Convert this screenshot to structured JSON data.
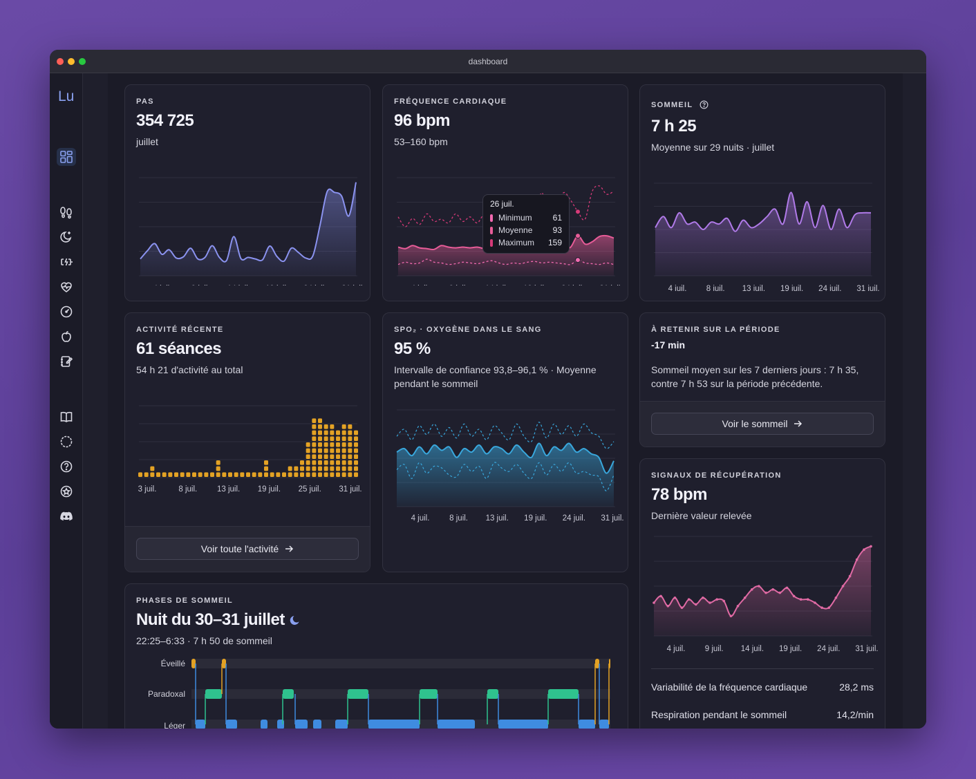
{
  "window": {
    "title": "dashboard"
  },
  "sidebar": {
    "logo": "Lu",
    "icons": [
      "dashboard-icon",
      "footprints-icon",
      "sleep-moon-icon",
      "battery-charging-icon",
      "heart-pulse-icon",
      "gauge-icon",
      "apple-icon",
      "journal-icon",
      "book-icon",
      "upload-icon",
      "help-icon",
      "badge-star-icon",
      "discord-icon"
    ]
  },
  "steps": {
    "label": "PAS",
    "value": "354 725",
    "subtitle": "juillet",
    "ticks": [
      "4 juil.",
      "9 juil.",
      "14 juil.",
      "19 juil.",
      "24 juil.",
      "31 juil."
    ]
  },
  "heart": {
    "label": "FRÉQUENCE CARDIAQUE",
    "value": "96 bpm",
    "subtitle": "53–160 bpm",
    "ticks": [
      "4 juil.",
      "9 juil.",
      "14 juil.",
      "19 juil.",
      "24 juil.",
      "31 juil."
    ],
    "tooltip": {
      "date": "26 juil.",
      "rows": [
        {
          "name": "Minimum",
          "value": "61"
        },
        {
          "name": "Moyenne",
          "value": "93"
        },
        {
          "name": "Maximum",
          "value": "159"
        }
      ]
    }
  },
  "sleep": {
    "label": "SOMMEIL",
    "value": "7 h 25",
    "subtitle": "Moyenne sur 29 nuits · juillet",
    "ticks": [
      "4 juil.",
      "8 juil.",
      "13 juil.",
      "19 juil.",
      "24 juil.",
      "31 juil."
    ]
  },
  "activity": {
    "label": "ACTIVITÉ RÉCENTE",
    "value": "61 séances",
    "subtitle": "54 h 21 d'activité au total",
    "ticks": [
      "3 juil.",
      "8 juil.",
      "13 juil.",
      "19 juil.",
      "25 juil.",
      "31 juil."
    ],
    "button": "Voir toute l'activité"
  },
  "spo2": {
    "label": "SPO₂ · OXYGÈNE DANS LE SANG",
    "value": "95 %",
    "subtitle": "Intervalle de confiance 93,8–96,1 % · Moyenne pendant le sommeil",
    "ticks": [
      "4 juil.",
      "8 juil.",
      "13 juil.",
      "19 juil.",
      "24 juil.",
      "31 juil."
    ]
  },
  "highlight": {
    "label": "À RETENIR SUR LA PÉRIODE",
    "value": "-17 min",
    "text": "Sommeil moyen sur les 7 derniers jours : 7 h 35, contre 7 h 53 sur la période précédente.",
    "button": "Voir le sommeil"
  },
  "recovery": {
    "label": "SIGNAUX DE RÉCUPÉRATION",
    "value": "78 bpm",
    "subtitle": "Dernière valeur relevée",
    "ticks": [
      "4 juil.",
      "9 juil.",
      "14 juil.",
      "19 juil.",
      "24 juil.",
      "31 juil."
    ],
    "stats": [
      {
        "name": "Variabilité de la fréquence cardiaque",
        "value": "28,2 ms"
      },
      {
        "name": "Respiration pendant le sommeil",
        "value": "14,2/min"
      }
    ]
  },
  "phases": {
    "label": "PHASES DE SOMMEIL",
    "title": "Nuit du 30–31 juillet",
    "subtitle": "22:25–6:33 · 7 h 50 de sommeil",
    "rows": [
      "Éveillé",
      "Paradoxal",
      "Léger"
    ]
  },
  "colors": {
    "steps": "#8b93f0",
    "heart": "#e85c98",
    "sleep": "#b07ae8",
    "activity": "#e3a224",
    "spo2": "#39a7dc",
    "recovery": "#e06aa4",
    "phase_awake": "#e3a224",
    "phase_rem": "#2fc28e",
    "phase_light": "#3f8ce0"
  },
  "chart_data": [
    {
      "type": "area",
      "name": "steps",
      "x": [
        "1 juil.",
        "2",
        "3",
        "4",
        "5",
        "6",
        "7",
        "8",
        "9",
        "10",
        "11",
        "12",
        "13",
        "14",
        "15",
        "16",
        "17",
        "18",
        "19",
        "20",
        "21",
        "22",
        "23",
        "24",
        "25",
        "26",
        "27",
        "28",
        "29",
        "30",
        "31"
      ],
      "values": [
        5500,
        8200,
        10500,
        7000,
        8500,
        5800,
        6200,
        9000,
        5500,
        6000,
        9800,
        6000,
        5000,
        12800,
        5600,
        6000,
        5500,
        5200,
        9700,
        6300,
        4800,
        9000,
        7600,
        5800,
        6500,
        16500,
        27500,
        27200,
        26000,
        19500,
        30500
      ],
      "ylim": [
        0,
        32000
      ]
    },
    {
      "type": "line",
      "name": "heart",
      "series": [
        {
          "name": "Minimum",
          "values": [
            55,
            58,
            56,
            57,
            62,
            58,
            57,
            55,
            56,
            58,
            57,
            56,
            58,
            60,
            57,
            55,
            57,
            56,
            58,
            59,
            57,
            58,
            57,
            56,
            55,
            61,
            57,
            56,
            55,
            57,
            55
          ]
        },
        {
          "name": "Moyenne",
          "values": [
            78,
            76,
            80,
            77,
            76,
            75,
            80,
            78,
            77,
            78,
            77,
            78,
            76,
            77,
            78,
            79,
            78,
            80,
            81,
            77,
            76,
            80,
            77,
            76,
            78,
            93,
            82,
            85,
            92,
            93,
            90
          ]
        },
        {
          "name": "Maximum",
          "values": [
            118,
            105,
            116,
            108,
            122,
            112,
            115,
            110,
            122,
            112,
            118,
            110,
            122,
            118,
            115,
            125,
            112,
            138,
            119,
            120,
            150,
            115,
            128,
            150,
            140,
            125,
            115,
            152,
            159,
            148,
            152
          ]
        }
      ],
      "ylim": [
        40,
        170
      ]
    },
    {
      "type": "area",
      "name": "sleep",
      "values": [
        7.6,
        8.2,
        7.6,
        8.4,
        7.8,
        7.9,
        7.5,
        7.9,
        7.8,
        8.1,
        7.4,
        8.0,
        7.6,
        7.8,
        8.2,
        8.6,
        7.8,
        9.5,
        7.8,
        9.0,
        7.6,
        8.8,
        7.5,
        8.6,
        7.6,
        8.3,
        8.4,
        8.4
      ],
      "ylim": [
        5,
        10
      ]
    },
    {
      "type": "bar",
      "name": "activity",
      "values": [
        1,
        1,
        2,
        1,
        1,
        1,
        1,
        1,
        1,
        1,
        1,
        1,
        1,
        3,
        1,
        1,
        1,
        1,
        1,
        1,
        1,
        3,
        1,
        1,
        1,
        2,
        2,
        3,
        6,
        10,
        10,
        9,
        9,
        8,
        9,
        9,
        8
      ],
      "ylim": [
        0,
        12
      ]
    },
    {
      "type": "line",
      "name": "spo2",
      "series": [
        {
          "name": "Moyenne",
          "values": [
            95.1,
            95.3,
            94.9,
            95.4,
            95.0,
            95.5,
            95.2,
            95.4,
            94.8,
            95.3,
            95.1,
            95.5,
            95.0,
            95.4,
            95.3,
            95.0,
            95.5,
            95.1,
            94.8,
            95.6,
            94.9,
            95.4,
            95.2,
            95.6,
            95.1,
            95.3,
            95.0,
            94.8,
            93.9,
            94.6
          ]
        },
        {
          "name": "Haut",
          "values": [
            96.0,
            96.4,
            95.8,
            96.6,
            96.1,
            96.7,
            96.0,
            96.5,
            95.9,
            96.7,
            96.0,
            96.4,
            95.8,
            96.6,
            96.2,
            95.8,
            96.7,
            96.0,
            95.7,
            96.8,
            95.9,
            96.7,
            96.1,
            96.6,
            96.0,
            96.7,
            96.2,
            96.0,
            95.3,
            95.7
          ]
        },
        {
          "name": "Bas",
          "values": [
            94.1,
            94.4,
            93.6,
            94.5,
            93.9,
            94.3,
            94.2,
            93.8,
            93.7,
            94.4,
            94.0,
            94.3,
            93.6,
            94.5,
            94.2,
            94.0,
            94.4,
            93.9,
            93.6,
            94.5,
            93.8,
            94.4,
            94.0,
            94.5,
            93.9,
            94.0,
            93.8,
            93.7,
            92.9,
            93.8
          ]
        }
      ],
      "ylim": [
        92,
        97.5
      ]
    },
    {
      "type": "line",
      "name": "recovery",
      "values": [
        60,
        64,
        58,
        63,
        57,
        62,
        59,
        63,
        60,
        62,
        61,
        52,
        58,
        63,
        68,
        70,
        66,
        68,
        66,
        69,
        64,
        62,
        62,
        60,
        57,
        57,
        63,
        70,
        76,
        86,
        92,
        94
      ],
      "ylim": [
        40,
        100
      ]
    }
  ]
}
